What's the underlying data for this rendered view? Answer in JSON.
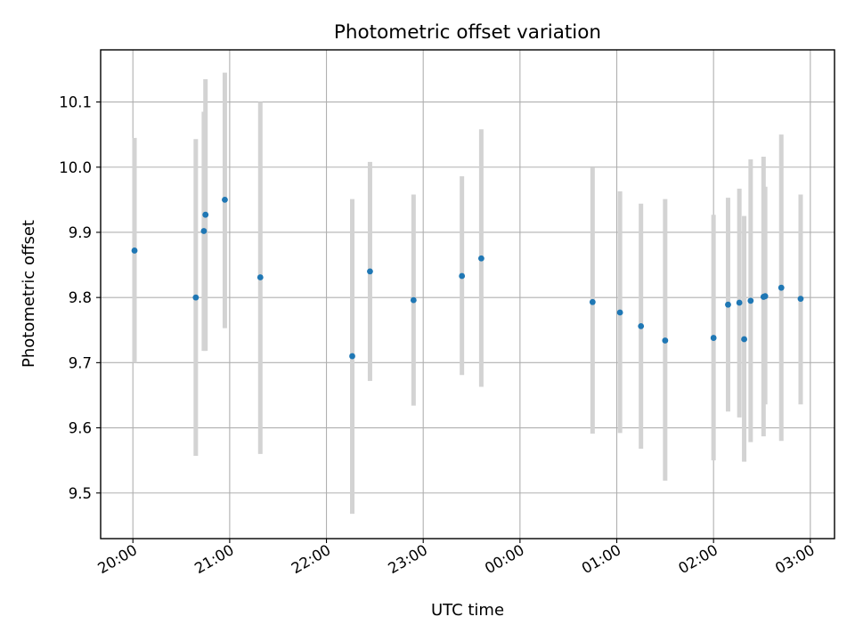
{
  "chart_data": {
    "type": "scatter",
    "title": "Photometric offset variation",
    "xlabel": "UTC time",
    "ylabel": "Photometric offset",
    "x_unit": "hours UTC (continuing past midnight)",
    "xlim": [
      "19:40",
      "03:15"
    ],
    "ylim": [
      9.43,
      10.18
    ],
    "x_ticks": [
      "20:00",
      "21:00",
      "22:00",
      "23:00",
      "00:00",
      "01:00",
      "02:00",
      "03:00"
    ],
    "y_ticks": [
      "9.5",
      "9.6",
      "9.7",
      "9.8",
      "9.9",
      "10.0",
      "10.1"
    ],
    "grid": true,
    "point_color": "#1f77b4",
    "errorbar_color": "#d3d3d3",
    "points": [
      {
        "t": "20:01",
        "y": 9.872,
        "lo": 9.7,
        "hi": 10.045
      },
      {
        "t": "20:39",
        "y": 9.8,
        "lo": 9.557,
        "hi": 10.043
      },
      {
        "t": "20:44",
        "y": 9.902,
        "lo": 9.718,
        "hi": 10.085
      },
      {
        "t": "20:45",
        "y": 9.927,
        "lo": 9.718,
        "hi": 10.135
      },
      {
        "t": "20:57",
        "y": 9.95,
        "lo": 9.753,
        "hi": 10.145
      },
      {
        "t": "21:19",
        "y": 9.831,
        "lo": 9.56,
        "hi": 10.1
      },
      {
        "t": "22:16",
        "y": 9.71,
        "lo": 9.468,
        "hi": 9.951
      },
      {
        "t": "22:27",
        "y": 9.84,
        "lo": 9.672,
        "hi": 10.008
      },
      {
        "t": "22:54",
        "y": 9.796,
        "lo": 9.634,
        "hi": 9.958
      },
      {
        "t": "23:24",
        "y": 9.833,
        "lo": 9.681,
        "hi": 9.986
      },
      {
        "t": "23:36",
        "y": 9.86,
        "lo": 9.663,
        "hi": 10.058
      },
      {
        "t": "00:45",
        "y": 9.793,
        "lo": 9.591,
        "hi": 9.999
      },
      {
        "t": "01:02",
        "y": 9.777,
        "lo": 9.592,
        "hi": 9.963
      },
      {
        "t": "01:15",
        "y": 9.756,
        "lo": 9.568,
        "hi": 9.944
      },
      {
        "t": "01:30",
        "y": 9.734,
        "lo": 9.519,
        "hi": 9.951
      },
      {
        "t": "02:00",
        "y": 9.738,
        "lo": 9.55,
        "hi": 9.927
      },
      {
        "t": "02:09",
        "y": 9.789,
        "lo": 9.625,
        "hi": 9.953
      },
      {
        "t": "02:16",
        "y": 9.792,
        "lo": 9.616,
        "hi": 9.967
      },
      {
        "t": "02:19",
        "y": 9.736,
        "lo": 9.548,
        "hi": 9.925
      },
      {
        "t": "02:23",
        "y": 9.795,
        "lo": 9.578,
        "hi": 10.012
      },
      {
        "t": "02:31",
        "y": 9.801,
        "lo": 9.587,
        "hi": 10.016
      },
      {
        "t": "02:32",
        "y": 9.802,
        "lo": 9.636,
        "hi": 9.97
      },
      {
        "t": "02:42",
        "y": 9.815,
        "lo": 9.58,
        "hi": 10.05
      },
      {
        "t": "02:54",
        "y": 9.798,
        "lo": 9.636,
        "hi": 9.958
      }
    ]
  }
}
